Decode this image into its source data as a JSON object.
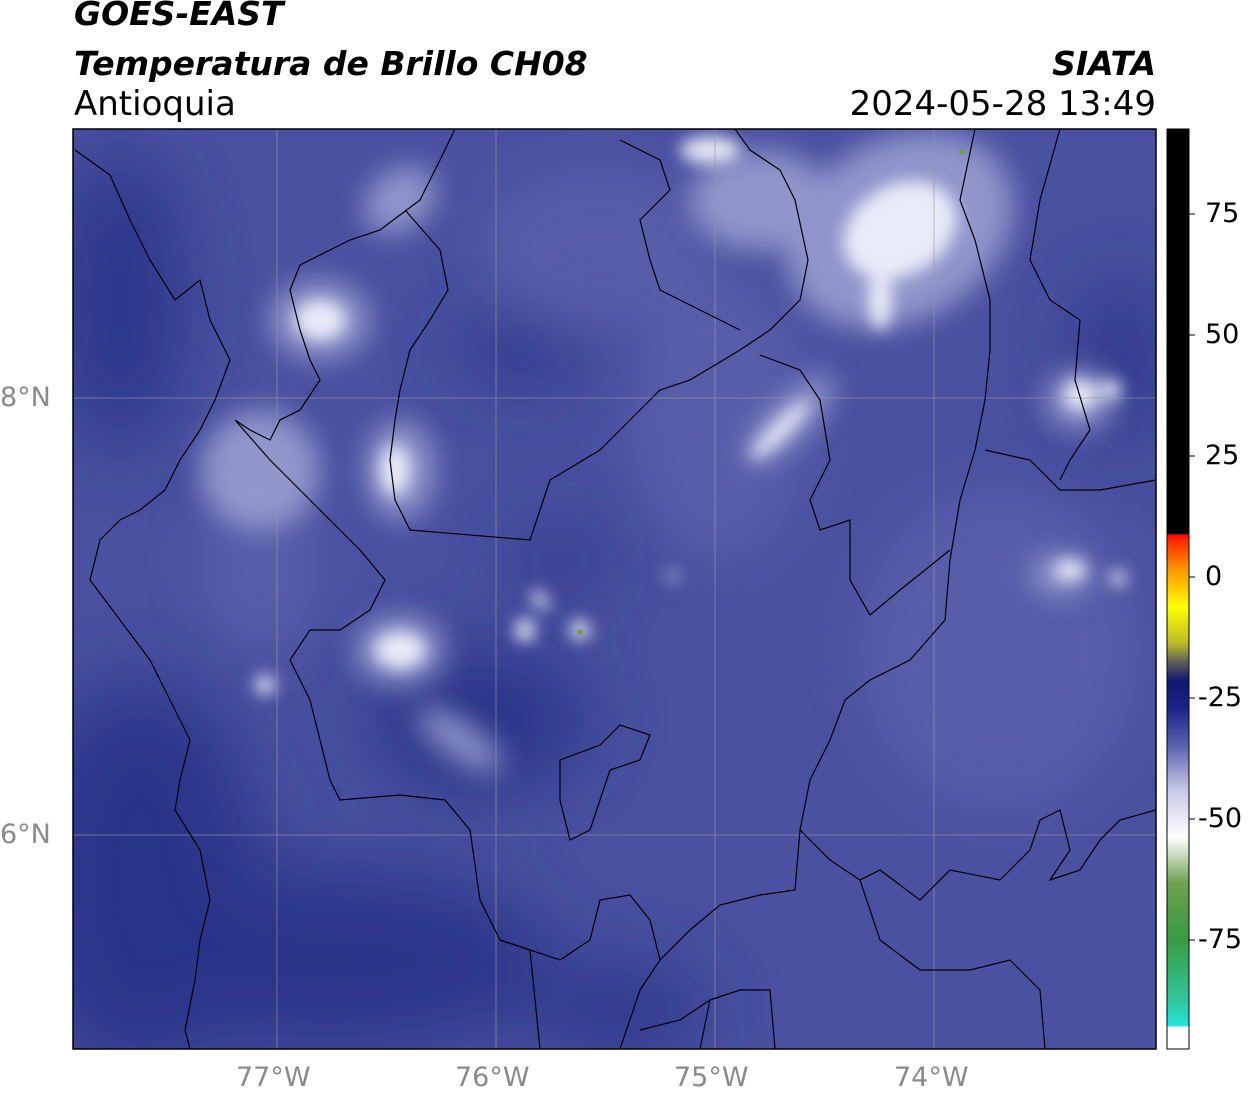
{
  "header": {
    "satellite": "GOES-EAST",
    "product": "Temperatura de Brillo CH08",
    "region": "Antioquia",
    "agency": "SIATA",
    "timestamp": "2024-05-28 13:49"
  },
  "map": {
    "latitude_labels": [
      "8°N",
      "6°N"
    ],
    "longitude_labels": [
      "77°W",
      "76°W",
      "75°W",
      "74°W"
    ],
    "background_color": "#3e4593",
    "dark_color": "#252a80",
    "cloud_color": "#eef0fb"
  },
  "colorbar": {
    "ticks": [
      "75",
      "50",
      "25",
      "0",
      "-25",
      "-50",
      "-75"
    ]
  }
}
